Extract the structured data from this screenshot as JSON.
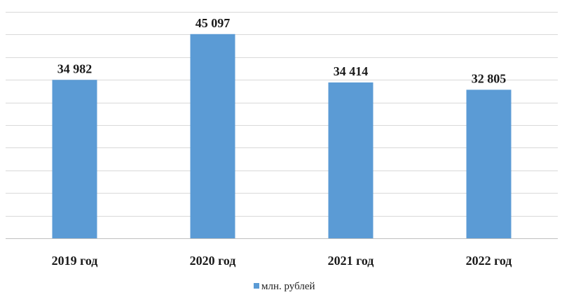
{
  "chart_data": {
    "type": "bar",
    "categories": [
      "2019 год",
      "2020 год",
      "2021 год",
      "2022 год"
    ],
    "series": [
      {
        "name": "млн. рублей",
        "values": [
          34982,
          45097,
          34414,
          32805
        ],
        "labels": [
          "34 982",
          "45 097",
          "34 414",
          "32 805"
        ],
        "color": "#5b9bd5"
      }
    ],
    "title": "",
    "xlabel": "",
    "ylabel": "",
    "ylim": [
      0,
      50000
    ],
    "y_tick_step": 5000,
    "grid": true,
    "y_tick_labels_visible": false,
    "legend": "bottom-center"
  }
}
